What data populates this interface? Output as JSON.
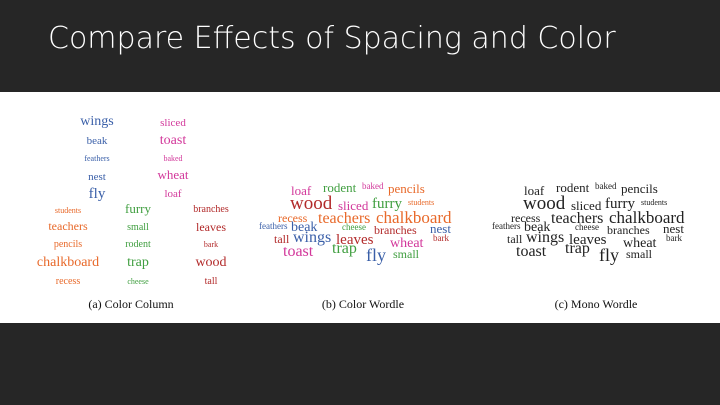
{
  "title": "Compare Effects of Spacing and Color",
  "panels": [
    {
      "caption": "(a) Color Column",
      "words": [
        "wings",
        "beak",
        "feathers",
        "nest",
        "fly",
        "sliced",
        "toast",
        "baked",
        "wheat",
        "loaf",
        "students",
        "teachers",
        "pencils",
        "chalkboard",
        "recess",
        "furry",
        "small",
        "rodent",
        "trap",
        "cheese",
        "branches",
        "leaves",
        "bark",
        "wood",
        "tall"
      ]
    },
    {
      "caption": "(b) Color Wordle",
      "words": [
        "loaf",
        "rodent",
        "baked",
        "pencils",
        "wood",
        "sliced",
        "furry",
        "students",
        "recess",
        "teachers",
        "chalkboard",
        "feathers",
        "beak",
        "cheese",
        "branches",
        "nest",
        "tall",
        "wings",
        "leaves",
        "wheat",
        "bark",
        "toast",
        "trap",
        "fly",
        "small"
      ]
    },
    {
      "caption": "(c) Mono Wordle",
      "words": [
        "loaf",
        "rodent",
        "baked",
        "pencils",
        "wood",
        "sliced",
        "furry",
        "students",
        "recess",
        "teachers",
        "chalkboard",
        "feathers",
        "beak",
        "cheese",
        "branches",
        "nest",
        "tall",
        "wings",
        "leaves",
        "wheat",
        "bark",
        "toast",
        "trap",
        "fly",
        "small"
      ]
    }
  ]
}
